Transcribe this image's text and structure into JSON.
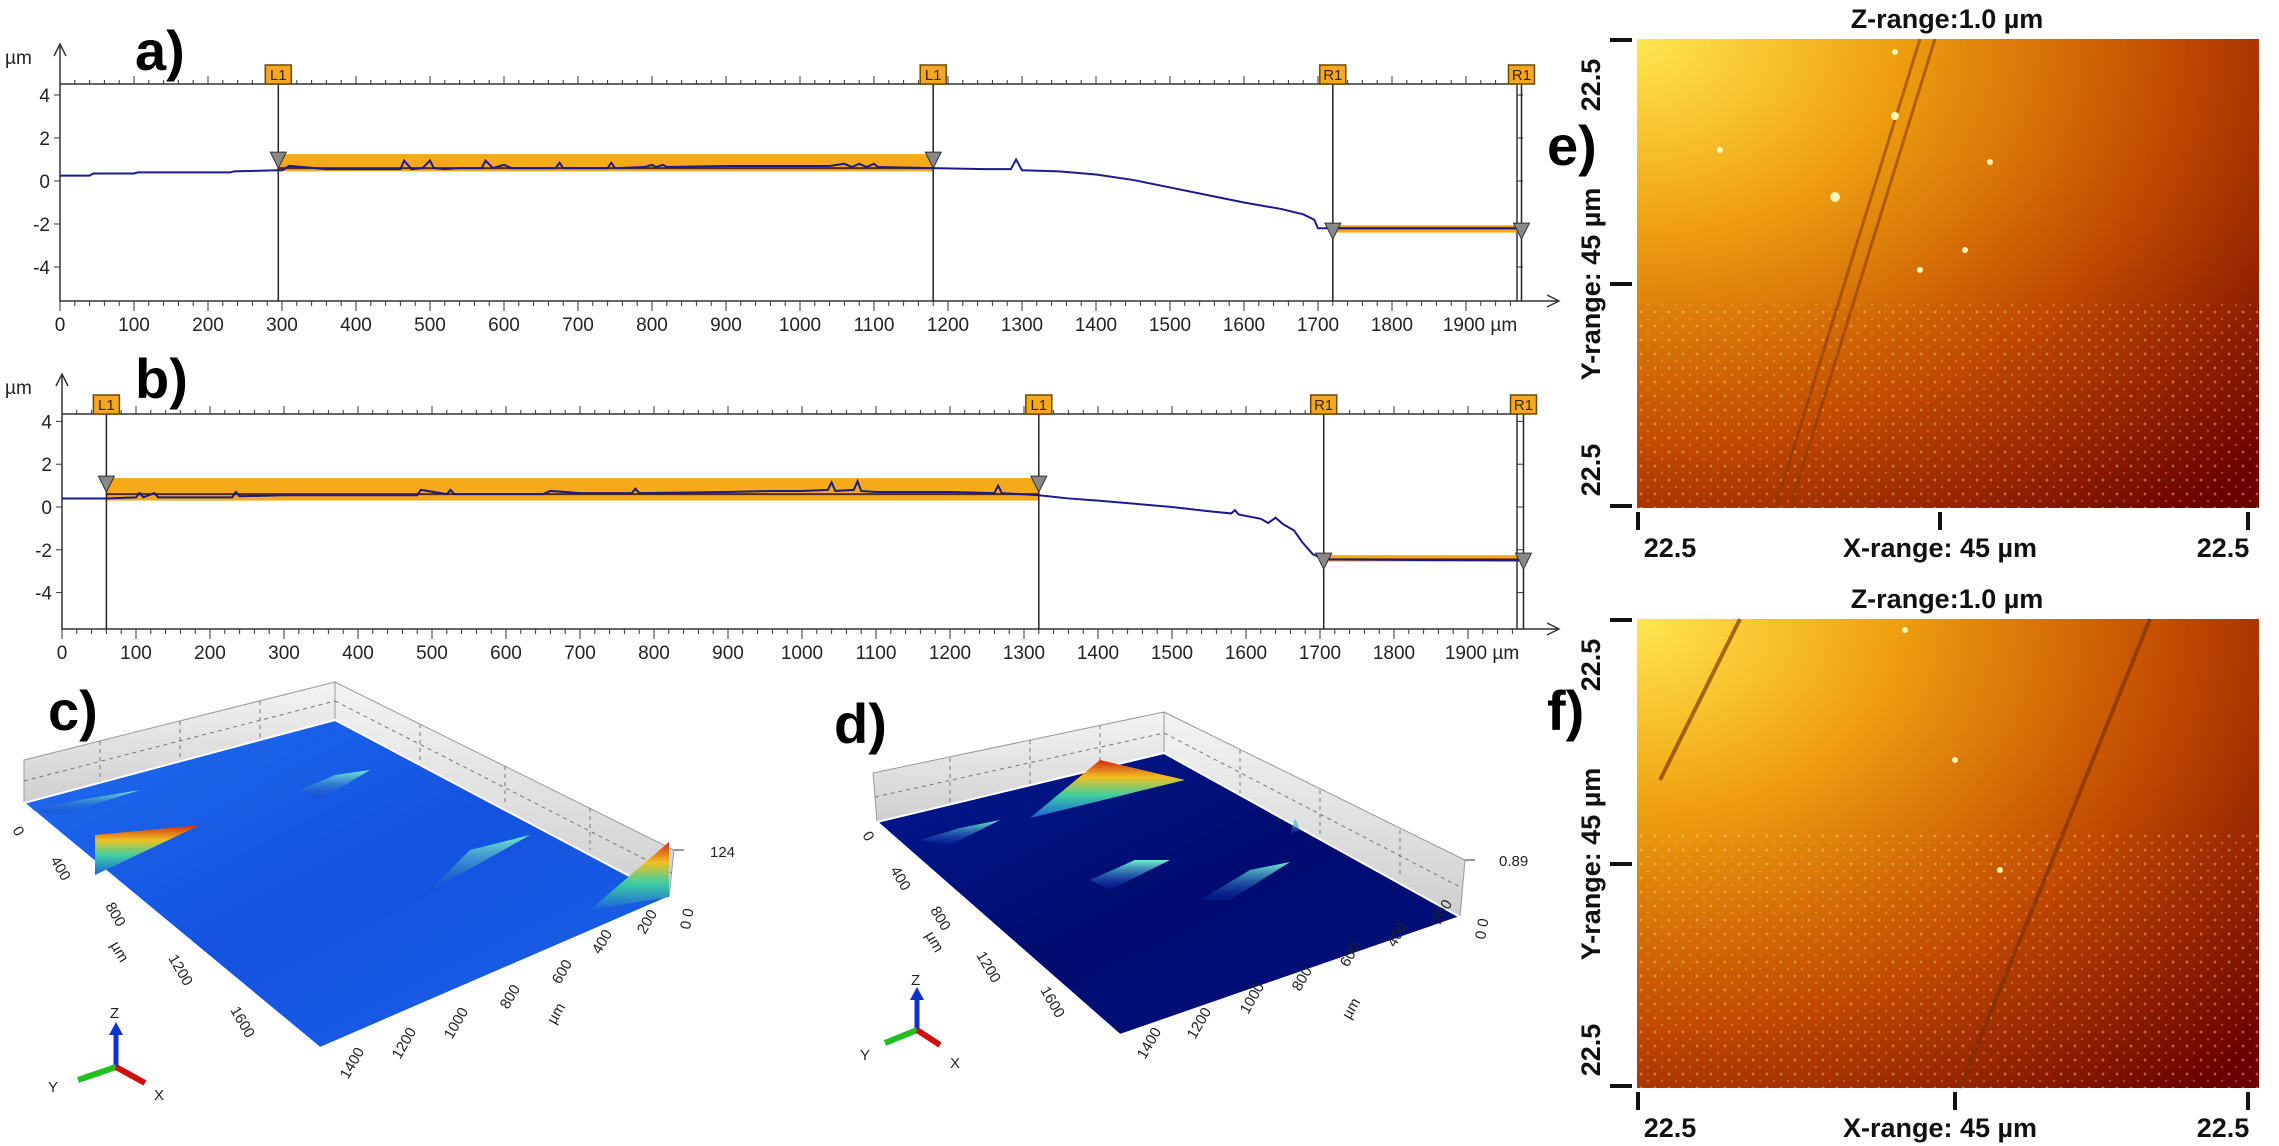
{
  "chart_data": [
    {
      "panel": "a)",
      "type": "line",
      "ylabel": "µm",
      "xunit": "µm",
      "xlim": [
        0,
        1975
      ],
      "ylim": [
        -5.6,
        4.5
      ],
      "xticks": [
        "0",
        "100",
        "200",
        "300",
        "400",
        "500",
        "600",
        "700",
        "800",
        "900",
        "1000",
        "1100",
        "1200",
        "1300",
        "1400",
        "1500",
        "1600",
        "1700",
        "1800",
        "1900"
      ],
      "yticks": [
        "4",
        "2",
        "0",
        "-2",
        "-4"
      ],
      "markers": [
        {
          "label": "L1",
          "x": 295
        },
        {
          "label": "L1",
          "x": 1180
        },
        {
          "label": "R1",
          "x": 1720
        },
        {
          "label": "R1",
          "x": 1975
        }
      ],
      "bands": [
        {
          "from": 295,
          "to": 1180,
          "ymin": 0.45,
          "ymax": 1.25,
          "level": 0.6
        },
        {
          "from": 1720,
          "to": 1975,
          "ymin": -2.4,
          "ymax": -2.05,
          "level": -2.2
        }
      ],
      "series_color": "#1a1a8c",
      "band_color": "#f5a000",
      "x": [
        0,
        40,
        45,
        100,
        105,
        230,
        235,
        295,
        300,
        310,
        360,
        460,
        465,
        475,
        490,
        500,
        505,
        520,
        540,
        570,
        575,
        585,
        600,
        610,
        670,
        675,
        680,
        740,
        745,
        750,
        790,
        800,
        805,
        815,
        820,
        900,
        1040,
        1060,
        1070,
        1080,
        1090,
        1100,
        1105,
        1180,
        1250,
        1285,
        1292,
        1300,
        1350,
        1400,
        1450,
        1500,
        1550,
        1600,
        1650,
        1680,
        1695,
        1700,
        1720,
        1975
      ],
      "y": [
        0.25,
        0.25,
        0.35,
        0.35,
        0.4,
        0.4,
        0.45,
        0.5,
        0.5,
        0.7,
        0.55,
        0.55,
        0.95,
        0.55,
        0.6,
        0.95,
        0.6,
        0.55,
        0.6,
        0.6,
        0.95,
        0.6,
        0.75,
        0.6,
        0.6,
        0.85,
        0.6,
        0.6,
        0.85,
        0.6,
        0.65,
        0.75,
        0.65,
        0.75,
        0.65,
        0.7,
        0.7,
        0.8,
        0.65,
        0.8,
        0.65,
        0.8,
        0.65,
        0.6,
        0.55,
        0.55,
        1.0,
        0.5,
        0.45,
        0.3,
        0.05,
        -0.3,
        -0.65,
        -1.0,
        -1.3,
        -1.55,
        -1.8,
        -2.2,
        -2.2,
        -2.2
      ]
    },
    {
      "panel": "b)",
      "type": "line",
      "ylabel": "µm",
      "xunit": "µm",
      "xlim": [
        0,
        1975
      ],
      "ylim": [
        -5.6,
        4.5
      ],
      "xticks": [
        "0",
        "100",
        "200",
        "300",
        "400",
        "500",
        "600",
        "700",
        "800",
        "900",
        "1000",
        "1100",
        "1200",
        "1300",
        "1400",
        "1500",
        "1600",
        "1700",
        "1800",
        "1900"
      ],
      "yticks": [
        "4",
        "2",
        "0",
        "-2",
        "-4"
      ],
      "markers": [
        {
          "label": "L1",
          "x": 60
        },
        {
          "label": "L1",
          "x": 1320
        },
        {
          "label": "R1",
          "x": 1705
        },
        {
          "label": "R1",
          "x": 1975
        }
      ],
      "bands": [
        {
          "from": 60,
          "to": 1320,
          "ymin": 0.3,
          "ymax": 1.35,
          "level": 0.6
        },
        {
          "from": 1705,
          "to": 1975,
          "ymin": -2.55,
          "ymax": -2.25,
          "level": -2.45
        }
      ],
      "series_color": "#1a1a8c",
      "band_color": "#f5a000",
      "x": [
        0,
        60,
        100,
        105,
        110,
        125,
        130,
        230,
        235,
        240,
        300,
        480,
        485,
        520,
        525,
        530,
        650,
        660,
        700,
        770,
        775,
        780,
        900,
        960,
        1000,
        1035,
        1040,
        1045,
        1070,
        1075,
        1080,
        1100,
        1200,
        1260,
        1265,
        1270,
        1320,
        1360,
        1400,
        1450,
        1500,
        1550,
        1580,
        1585,
        1590,
        1620,
        1630,
        1640,
        1650,
        1665,
        1675,
        1690,
        1705,
        1975
      ],
      "y": [
        0.4,
        0.4,
        0.45,
        0.65,
        0.45,
        0.65,
        0.45,
        0.45,
        0.7,
        0.5,
        0.55,
        0.55,
        0.8,
        0.6,
        0.8,
        0.6,
        0.6,
        0.75,
        0.65,
        0.65,
        0.85,
        0.65,
        0.7,
        0.75,
        0.75,
        0.8,
        1.15,
        0.75,
        0.8,
        1.2,
        0.75,
        0.7,
        0.7,
        0.65,
        1.0,
        0.65,
        0.55,
        0.4,
        0.3,
        0.15,
        0.0,
        -0.2,
        -0.3,
        -0.15,
        -0.35,
        -0.55,
        -0.75,
        -0.5,
        -0.8,
        -1.1,
        -1.6,
        -2.2,
        -2.45,
        -2.5
      ]
    },
    {
      "panel": "c)",
      "type": "surface",
      "y_ticks": [
        "0",
        "400",
        "800",
        "1200",
        "1600"
      ],
      "y_unit": "µm",
      "x_ticks": [
        "1400",
        "1200",
        "1000",
        "800",
        "600",
        "400",
        "200"
      ],
      "x_unit": "µm",
      "z_ticks": [
        "124",
        "0 0"
      ],
      "axes": [
        "Z",
        "Y",
        "X"
      ],
      "colormap": [
        "#0a2a9a",
        "#1a5fe0",
        "#2fd0a0",
        "#f0e020",
        "#d03010"
      ]
    },
    {
      "panel": "d)",
      "type": "surface",
      "y_ticks": [
        "0",
        "400",
        "800",
        "1200",
        "1600"
      ],
      "y_unit": "µm",
      "x_ticks": [
        "1400",
        "1200",
        "1000",
        "800",
        "600",
        "400",
        "200"
      ],
      "x_unit": "µm",
      "z_ticks": [
        "0.89",
        "0 0"
      ],
      "axes": [
        "Z",
        "Y",
        "X"
      ],
      "colormap": [
        "#000a60",
        "#1030c0",
        "#40d0c0",
        "#f0e020",
        "#c03010"
      ]
    },
    {
      "panel": "e)",
      "type": "heatmap",
      "title": "Z-range:1.0 µm",
      "xlabel": "X-range: 45 µm",
      "ylabel": "Y-range: 45 µm",
      "x_ticks": [
        "22.5",
        "22.5"
      ],
      "y_ticks": [
        "22.5",
        "22.5"
      ],
      "colormap": [
        "#ffe040",
        "#f0a000",
        "#c04000",
        "#800000"
      ]
    },
    {
      "panel": "f)",
      "type": "heatmap",
      "title": "Z-range:1.0 µm",
      "xlabel": "X-range: 45 µm",
      "ylabel": "Y-range: 45 µm",
      "x_ticks": [
        "22.5",
        "22.5"
      ],
      "y_ticks": [
        "22.5",
        "22.5"
      ],
      "colormap": [
        "#ffe040",
        "#f0a000",
        "#c04000",
        "#800000"
      ]
    }
  ]
}
